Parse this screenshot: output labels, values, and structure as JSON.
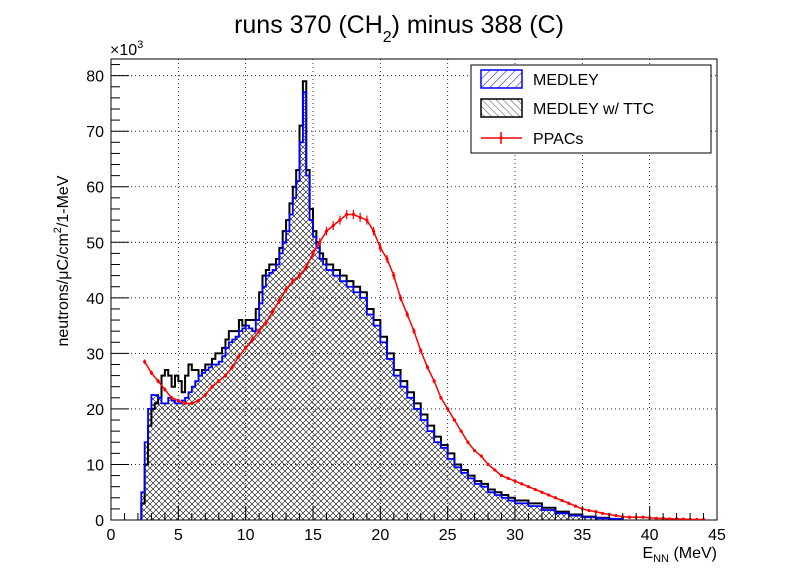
{
  "chart_data": {
    "type": "line",
    "title_main": "runs 370 (CH",
    "title_sub": "2",
    "title_rest": ") minus 388 (C)",
    "xlabel_main": "E",
    "xlabel_sub": "NN",
    "xlabel_rest": " (MeV)",
    "ylabel_main": "neutrons/",
    "ylabel_mu": "μ",
    "ylabel_mid": "C/cm",
    "ylabel_sup": "2",
    "ylabel_rest": "/1-MeV",
    "y_multiplier_base": "×10",
    "y_multiplier_exp": "3",
    "xlim": [
      0,
      45
    ],
    "ylim": [
      0,
      83
    ],
    "x_ticks": [
      "0",
      "5",
      "10",
      "15",
      "20",
      "25",
      "30",
      "35",
      "40",
      "45"
    ],
    "y_ticks": [
      "0",
      "10",
      "20",
      "30",
      "40",
      "50",
      "60",
      "70",
      "80"
    ],
    "grid": true,
    "legend_position": "top-right",
    "series": [
      {
        "name": "MEDLEY",
        "style": "step-hatched",
        "color": "#0000ff",
        "x": [
          2.25,
          2.5,
          2.75,
          3,
          3.25,
          3.5,
          3.75,
          4,
          4.25,
          4.5,
          4.75,
          5,
          5.25,
          5.5,
          5.75,
          6,
          6.25,
          6.5,
          6.75,
          7,
          7.25,
          7.5,
          7.75,
          8,
          8.25,
          8.5,
          8.75,
          9,
          9.25,
          9.5,
          9.75,
          10,
          10.25,
          10.5,
          10.75,
          11,
          11.25,
          11.5,
          11.75,
          12,
          12.25,
          12.5,
          12.75,
          13,
          13.25,
          13.5,
          13.75,
          14,
          14.25,
          14.5,
          14.75,
          15,
          15.25,
          15.5,
          15.75,
          16,
          16.5,
          17,
          17.5,
          18,
          18.5,
          19,
          19.5,
          20,
          20.5,
          21,
          21.5,
          22,
          22.5,
          23,
          23.5,
          24,
          24.5,
          25,
          25.5,
          26,
          26.5,
          27,
          27.5,
          28,
          28.5,
          29,
          29.5,
          30,
          31,
          32,
          33,
          34,
          35,
          36,
          37
        ],
        "y": [
          5,
          14,
          20,
          22.5,
          22.5,
          22,
          21,
          21,
          22,
          21.5,
          21,
          21,
          21.5,
          22,
          23,
          24,
          25,
          26,
          26.5,
          27,
          27.5,
          28,
          28,
          28.5,
          29.5,
          31,
          32,
          32.5,
          33,
          34,
          34.5,
          35,
          34.5,
          34,
          36,
          39,
          42,
          44,
          44.5,
          45,
          46,
          48,
          50,
          52,
          55,
          58,
          61,
          68,
          77,
          62,
          54,
          51,
          49,
          47,
          46,
          45,
          44,
          43,
          42,
          41,
          40,
          37,
          35,
          32,
          29,
          26,
          24,
          22,
          20,
          18,
          16,
          14,
          13,
          11,
          9.5,
          8.5,
          7.5,
          6.5,
          6,
          5,
          4.5,
          4,
          3.5,
          3,
          2.5,
          1.8,
          1.2,
          0.8,
          0.5,
          0.3,
          0.2
        ]
      },
      {
        "name": "MEDLEY w/ TTC",
        "style": "step-hatched",
        "color": "#000000",
        "x": [
          2.25,
          2.5,
          2.75,
          3,
          3.25,
          3.5,
          3.75,
          4,
          4.25,
          4.5,
          4.75,
          5,
          5.25,
          5.5,
          5.75,
          6,
          6.25,
          6.5,
          6.75,
          7,
          7.25,
          7.5,
          7.75,
          8,
          8.25,
          8.5,
          8.75,
          9,
          9.25,
          9.5,
          9.75,
          10,
          10.25,
          10.5,
          10.75,
          11,
          11.25,
          11.5,
          11.75,
          12,
          12.25,
          12.5,
          12.75,
          13,
          13.25,
          13.5,
          13.75,
          14,
          14.25,
          14.5,
          14.75,
          15,
          15.25,
          15.5,
          15.75,
          16,
          16.5,
          17,
          17.5,
          18,
          18.5,
          19,
          19.5,
          20,
          20.5,
          21,
          21.5,
          22,
          22.5,
          23,
          23.5,
          24,
          24.5,
          25,
          25.5,
          26,
          26.5,
          27,
          27.5,
          28,
          28.5,
          29,
          29.5,
          30,
          31,
          32,
          33,
          34,
          35,
          36,
          37
        ],
        "y": [
          3,
          10,
          17,
          20,
          21,
          22,
          26,
          27,
          26,
          24,
          26,
          25,
          23,
          26,
          28,
          27,
          27,
          26,
          27,
          28,
          28,
          29,
          30,
          30,
          31,
          32.5,
          34,
          34,
          34,
          36,
          35,
          36,
          36,
          36,
          38,
          41,
          44,
          45,
          46,
          46,
          47,
          49,
          52,
          54,
          57,
          60,
          63,
          71,
          79,
          63,
          56,
          52,
          50,
          48,
          47,
          46,
          45,
          44,
          43,
          42,
          41,
          38,
          36,
          33,
          30,
          27,
          25,
          23,
          21,
          19,
          17,
          15,
          13.5,
          12,
          10,
          9,
          8,
          7,
          6.5,
          5.5,
          5,
          4.5,
          4,
          3.5,
          3,
          2.2,
          1.5,
          1,
          0.6,
          0.4,
          0.2
        ]
      },
      {
        "name": "PPACs",
        "style": "points-errorbars",
        "color": "#ff0000",
        "x": [
          2.5,
          3,
          3.5,
          4,
          4.5,
          5,
          5.5,
          6,
          6.5,
          7,
          7.5,
          8,
          8.5,
          9,
          9.5,
          10,
          10.5,
          11,
          11.5,
          12,
          12.5,
          13,
          13.5,
          14,
          14.5,
          15,
          15.5,
          16,
          16.5,
          17,
          17.5,
          18,
          18.5,
          19,
          19.5,
          20,
          20.5,
          21,
          21.5,
          22,
          22.5,
          23,
          23.5,
          24,
          24.5,
          25,
          25.5,
          26,
          26.5,
          27,
          27.5,
          28,
          28.5,
          29,
          29.5,
          30,
          30.5,
          31,
          31.5,
          32,
          32.5,
          33,
          33.5,
          34,
          34.5,
          35,
          35.5,
          36,
          36.5,
          37,
          37.5,
          38,
          38.5,
          39,
          39.5,
          40,
          40.5,
          41,
          41.5,
          42,
          42.5,
          43,
          43.5,
          44
        ],
        "y": [
          28.5,
          26.5,
          25,
          23.5,
          22,
          21.5,
          21,
          21,
          21.5,
          22.5,
          24,
          25,
          26,
          27.5,
          29.5,
          31,
          32.5,
          34,
          35.5,
          37.5,
          39.5,
          41.5,
          43,
          44,
          45.5,
          48,
          50,
          52,
          53,
          54,
          55,
          55,
          54.5,
          54,
          52,
          49,
          47,
          44,
          40,
          37,
          34,
          30.5,
          27.5,
          25,
          22,
          20,
          18,
          16,
          14,
          12.5,
          11.5,
          10,
          9,
          8,
          7.5,
          7,
          6.5,
          6,
          5.5,
          5,
          4.5,
          4,
          3.5,
          3,
          2.5,
          2,
          1.7,
          1.5,
          1.2,
          1,
          0.8,
          0.6,
          0.5,
          0.5,
          0.5,
          0.4,
          0.3,
          0.3,
          0.2,
          0.2,
          0.15,
          0.1,
          0.1,
          0.1
        ]
      }
    ]
  }
}
